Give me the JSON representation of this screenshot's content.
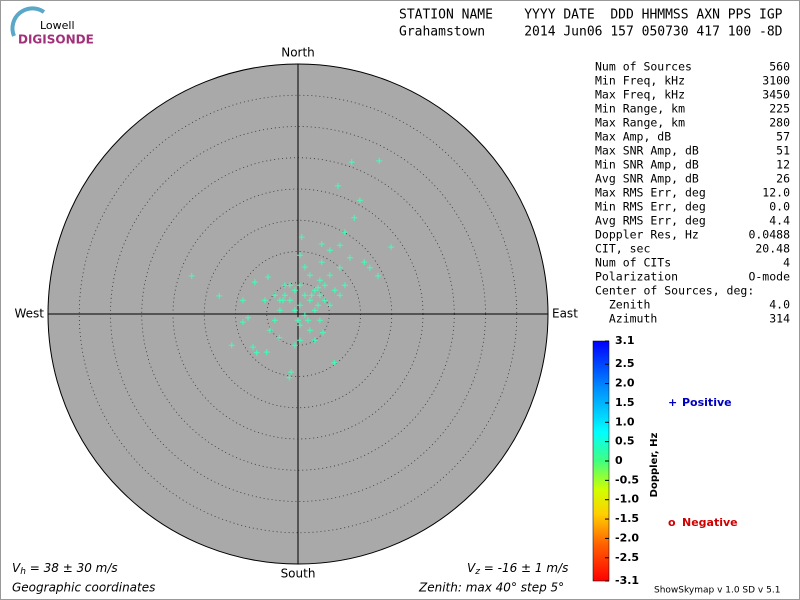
{
  "header": {
    "logo_top": "Lowell",
    "logo_bottom": "DIGISONDE",
    "line1": "STATION NAME    YYYY DATE  DDD HHMMSS AXN PPS IGP",
    "line2": "Grahamstown     2014 Jun06 157 050730 417 100 -8D"
  },
  "chart_data": {
    "type": "skymap",
    "north": "North",
    "south": "South",
    "east": "East",
    "west": "West",
    "rlim": [
      0,
      40
    ],
    "rticks": [
      5,
      10,
      15,
      20,
      25,
      30,
      35
    ],
    "color": "#40ffb8",
    "x": [
      13.0,
      8.6,
      6.4,
      9.9,
      9.0,
      0.6,
      3.8,
      7.5,
      14.9,
      1.1,
      -17.0,
      -12.6,
      -8.8,
      -6.9,
      -4.8,
      -8.0,
      -8.8,
      -10.6,
      -7.2,
      -6.6,
      -5.0,
      -3.0,
      -1.4,
      -1.1,
      4.0,
      5.8,
      11.5,
      12.8,
      10.6,
      8.3,
      6.7,
      5.1,
      3.5,
      2.7,
      1.1,
      1.9,
      0.3,
      -0.5,
      1.1,
      2.7,
      4.3,
      5.9,
      -1.3,
      -2.1,
      -2.9,
      -3.7,
      -4.5,
      0.3,
      1.9,
      3.5,
      5.1,
      6.7,
      7.5,
      0.3,
      1.9,
      -1.3,
      -0.5,
      3.5,
      4.3,
      3.2,
      1.6,
      0.0,
      -2.9,
      -2.1,
      -3.7,
      -5.3,
      0.3,
      -0.5,
      2.7,
      5.1,
      3.8,
      6.7,
      0.3,
      -2.4,
      2.2,
      3.2
    ],
    "y": [
      24.5,
      24.3,
      20.5,
      18.2,
      15.4,
      12.3,
      11.2,
      13.1,
      10.7,
      7.5,
      6.1,
      2.9,
      2.2,
      5.1,
      5.9,
      -0.6,
      -1.3,
      -5.0,
      -5.3,
      -6.2,
      -6.1,
      -3.8,
      -10.2,
      -9.3,
      -3.0,
      -7.8,
      7.4,
      6.1,
      8.3,
      9.0,
      7.4,
      6.2,
      5.4,
      3.8,
      3.0,
      2.2,
      1.4,
      0.6,
      -0.2,
      0.6,
      2.2,
      3.8,
      2.2,
      3.0,
      0.6,
      -1.0,
      -2.6,
      -1.8,
      -2.6,
      -1.0,
      1.4,
      3.0,
      4.6,
      4.6,
      6.2,
      4.6,
      3.8,
      3.0,
      4.6,
      1.4,
      -1.0,
      -1.0,
      2.2,
      4.6,
      3.0,
      2.2,
      -4.2,
      -5.0,
      -4.2,
      10.2,
      8.3,
      11.0,
      9.4,
      2.2,
      3.0,
      4.2
    ],
    "colorbar": {
      "label": "Doppler, Hz",
      "clim": [
        -3.1,
        3.1
      ],
      "ticks": [
        3.1,
        2.5,
        {
          "value": 2,
          "label": "2.0"
        },
        1.5,
        {
          "value": 1,
          "label": "1.0"
        },
        0.5,
        0,
        -0.5,
        {
          "value": -1,
          "label": "-1.0"
        },
        -1.5,
        {
          "value": -2,
          "label": "-2.0"
        },
        -2.5,
        -3.1
      ]
    },
    "legend": {
      "positive_symbol": "+",
      "positive": "Positive",
      "negative_symbol": "o",
      "negative": "Negative"
    }
  },
  "stats": {
    "rows": [
      [
        "Num of Sources",
        "560"
      ],
      [
        "Min Freq, kHz",
        "3100"
      ],
      [
        "Max Freq, kHz",
        "3450"
      ],
      [
        "Min Range, km",
        "225"
      ],
      [
        "Max Range, km",
        "280"
      ],
      [
        "Max Amp, dB",
        "57"
      ],
      [
        "Max SNR Amp, dB",
        "51"
      ],
      [
        "Min SNR Amp, dB",
        "12"
      ],
      [
        "Avg SNR Amp, dB",
        "26"
      ],
      [
        "Max RMS Err, deg",
        "12.0"
      ],
      [
        "Min RMS Err, deg",
        "0.0"
      ],
      [
        "Avg RMS Err, deg",
        "4.4"
      ],
      [
        "Doppler Res, Hz",
        "0.0488"
      ],
      [
        "CIT, sec",
        "20.48"
      ],
      [
        "Num of CITs",
        "4"
      ],
      [
        "Polarization",
        "O-mode"
      ],
      [
        "Center of Sources, deg:"
      ],
      [
        "  Zenith",
        "4.0"
      ],
      [
        "  Azimuth",
        "314"
      ]
    ]
  },
  "footer": {
    "vh_symbol": "V",
    "vh_sub": "h",
    "vh_text": " = 38 ± 30 m/s",
    "vz_symbol": "V",
    "vz_sub": "z",
    "vz_text": " = -16 ± 1 m/s",
    "coords": "Geographic coordinates",
    "zenith": "Zenith: max 40°  step 5°",
    "version": "ShowSkymap v 1.0  SD v 5.1"
  }
}
